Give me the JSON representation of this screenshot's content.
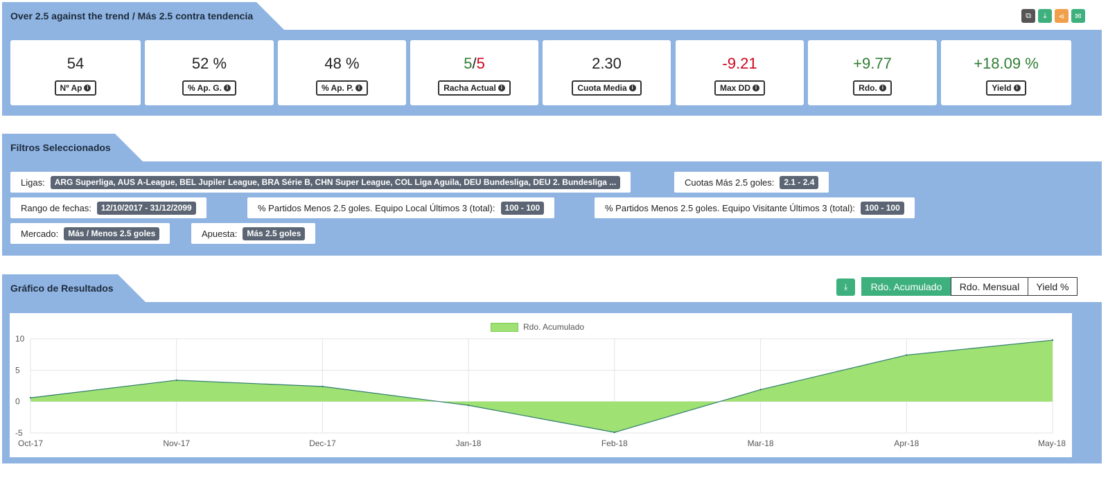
{
  "header": {
    "title": "Over 2.5 against the trend / Más 2.5 contra tendencia",
    "icons": [
      "copy-icon",
      "download-icon",
      "share-icon",
      "email-icon"
    ],
    "icon_colors": [
      "#555555",
      "#3eb07d",
      "#f0a04b",
      "#3eb07d"
    ]
  },
  "stats": [
    {
      "value": "54",
      "label": "Nº Ap"
    },
    {
      "value": "52 %",
      "label": "% Ap. G."
    },
    {
      "value": "48 %",
      "label": "% Ap. P."
    },
    {
      "value_part1": "5",
      "value_sep": "/",
      "value_part2": "5",
      "label": "Racha Actual"
    },
    {
      "value": "2.30",
      "label": "Cuota Media"
    },
    {
      "value": "-9.21",
      "label": "Max DD"
    },
    {
      "value": "+9.77",
      "label": "Rdo."
    },
    {
      "value": "+18.09 %",
      "label": "Yield"
    }
  ],
  "filters_title": "Filtros Seleccionados",
  "filters": [
    {
      "key": "Ligas:",
      "value": "ARG Superliga, AUS A-League, BEL Jupiler League, BRA Série B, CHN Super League, COL Liga Aguila, DEU Bundesliga, DEU 2. Bundesliga ..."
    },
    {
      "key": "Cuotas Más 2.5 goles:",
      "value": "2.1 - 2.4"
    },
    {
      "key": "Rango de fechas:",
      "value": "12/10/2017 - 31/12/2099"
    },
    {
      "key": "% Partidos Menos 2.5 goles. Equipo Local Últimos 3 (total):",
      "value": "100 - 100"
    },
    {
      "key": "% Partidos Menos 2.5 goles. Equipo Visitante Últimos 3 (total):",
      "value": "100 - 100"
    },
    {
      "key": "Mercado:",
      "value": "Más / Menos 2.5 goles"
    },
    {
      "key": "Apuesta:",
      "value": "Más 2.5 goles"
    }
  ],
  "chart_section": {
    "title": "Gráfico de Resultados",
    "buttons": [
      "Rdo. Acumulado",
      "Rdo. Mensual",
      "Yield %"
    ],
    "active_button": "Rdo. Acumulado"
  },
  "chart_data": {
    "type": "area",
    "x": [
      "Oct-17",
      "Nov-17",
      "Dec-17",
      "Jan-18",
      "Feb-18",
      "Mar-18",
      "Apr-18",
      "May-18"
    ],
    "series": [
      {
        "name": "Rdo. Acumulado",
        "values": [
          0.6,
          3.4,
          2.4,
          -0.6,
          -4.9,
          1.9,
          7.4,
          9.77
        ]
      }
    ],
    "yticks": [
      10,
      5,
      0,
      -5
    ],
    "ylim": [
      -5,
      10
    ],
    "fill_color": "#9fe172",
    "line_color": "#2e7d6e",
    "legend": "top-center",
    "grid": true
  }
}
